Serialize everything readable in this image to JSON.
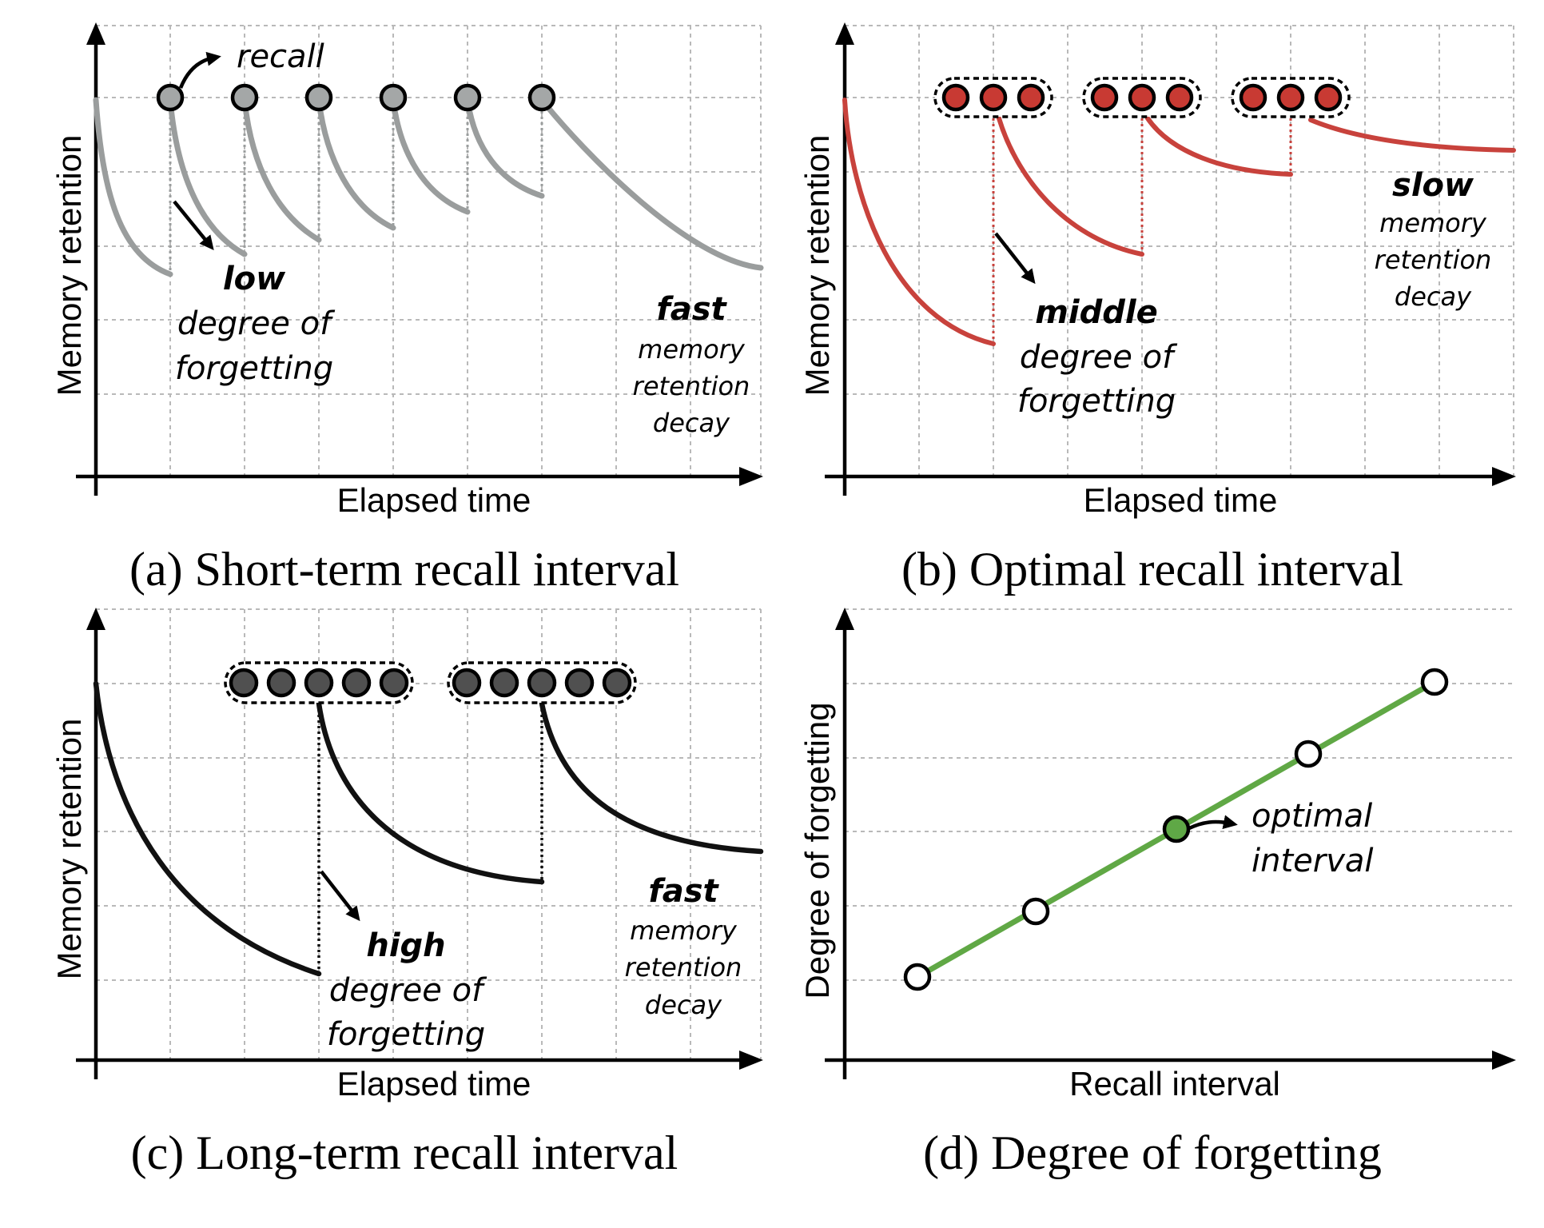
{
  "colors": {
    "short_term_curve": "#9a9d9d",
    "short_term_node": "#a4a7a7",
    "optimal_curve": "#c8423c",
    "optimal_node": "#c83a33",
    "long_term_curve": "#111111",
    "long_term_node": "#505050",
    "degree_line": "#60a845",
    "optimal_point": "#5fa846"
  },
  "icons": {
    "pointer": "arrow-pointer-icon",
    "axis_head": "arrowhead-icon"
  },
  "panels": {
    "a": {
      "caption": "(a) Short-term recall interval",
      "ylabel": "Memory retention",
      "xlabel": "Elapsed time",
      "recall_label": "recall",
      "forgetting": {
        "level": "low",
        "line1": "degree of",
        "line2": "forgetting"
      },
      "decay": {
        "speed": "fast",
        "line1": "memory",
        "line2": "retention",
        "line3": "decay"
      }
    },
    "b": {
      "caption": "(b) Optimal recall interval",
      "ylabel": "Memory retention",
      "xlabel": "Elapsed time",
      "forgetting": {
        "level": "middle",
        "line1": "degree of",
        "line2": "forgetting"
      },
      "decay": {
        "speed": "slow",
        "line1": "memory",
        "line2": "retention",
        "line3": "decay"
      }
    },
    "c": {
      "caption": "(c) Long-term recall interval",
      "ylabel": "Memory retention",
      "xlabel": "Elapsed time",
      "forgetting": {
        "level": "high",
        "line1": "degree of",
        "line2": "forgetting"
      },
      "decay": {
        "speed": "fast",
        "line1": "memory",
        "line2": "retention",
        "line3": "decay"
      }
    },
    "d": {
      "caption": "(d) Degree of forgetting",
      "ylabel": "Degree of forgetting",
      "xlabel": "Recall interval",
      "optimal_line1": "optimal",
      "optimal_line2": "interval"
    }
  }
}
